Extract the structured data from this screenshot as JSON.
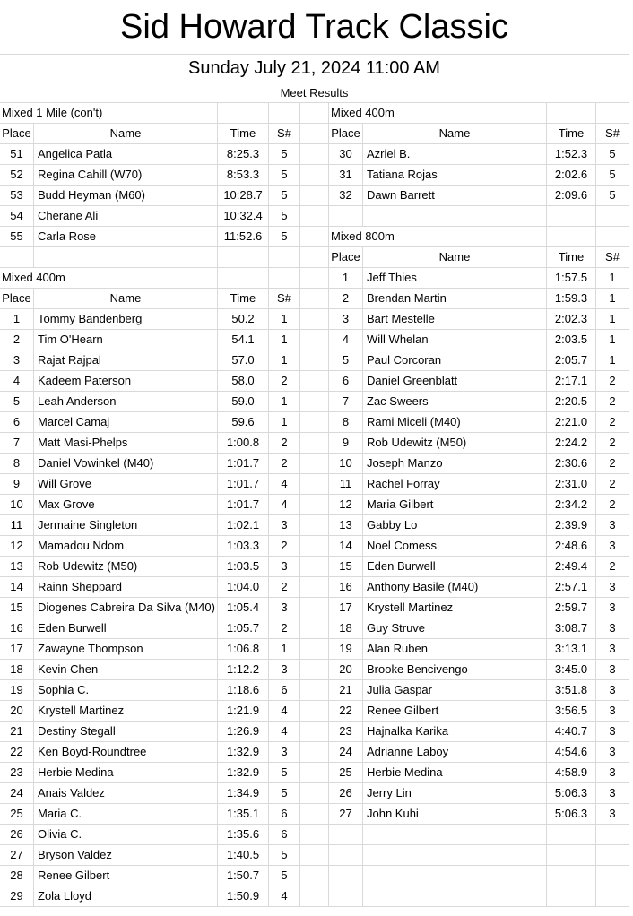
{
  "header": {
    "title": "Sid Howard Track Classic",
    "date": "Sunday July 21, 2024 11:00 AM",
    "subtitle": "Meet Results"
  },
  "columns": [
    {
      "sections": [
        {
          "title": "Mixed 1 Mile (con't)",
          "headers": [
            "Place",
            "Name",
            "Time",
            "S#"
          ],
          "rows": [
            [
              51,
              "Angelica Patla",
              "8:25.3",
              5
            ],
            [
              52,
              "Regina Cahill (W70)",
              "8:53.3",
              5
            ],
            [
              53,
              "Budd Heyman (M60)",
              "10:28.7",
              5
            ],
            [
              54,
              "Cherane Ali",
              "10:32.4",
              5
            ],
            [
              55,
              "Carla Rose",
              "11:52.6",
              5
            ]
          ]
        },
        {
          "title": "Mixed 400m",
          "headers": [
            "Place",
            "Name",
            "Time",
            "S#"
          ],
          "rows": [
            [
              1,
              "Tommy Bandenberg",
              "50.2",
              1
            ],
            [
              2,
              "Tim O'Hearn",
              "54.1",
              1
            ],
            [
              3,
              "Rajat Rajpal",
              "57.0",
              1
            ],
            [
              4,
              "Kadeem Paterson",
              "58.0",
              2
            ],
            [
              5,
              "Leah Anderson",
              "59.0",
              1
            ],
            [
              6,
              "Marcel Camaj",
              "59.6",
              1
            ],
            [
              7,
              "Matt Masi-Phelps",
              "1:00.8",
              2
            ],
            [
              8,
              "Daniel Vowinkel (M40)",
              "1:01.7",
              2
            ],
            [
              9,
              "Will Grove",
              "1:01.7",
              4
            ],
            [
              10,
              "Max Grove",
              "1:01.7",
              4
            ],
            [
              11,
              "Jermaine Singleton",
              "1:02.1",
              3
            ],
            [
              12,
              "Mamadou Ndom",
              "1:03.3",
              2
            ],
            [
              13,
              "Rob Udewitz (M50)",
              "1:03.5",
              3
            ],
            [
              14,
              "Rainn Sheppard",
              "1:04.0",
              2
            ],
            [
              15,
              "Diogenes Cabreira Da Silva (M40)",
              "1:05.4",
              3
            ],
            [
              16,
              "Eden Burwell",
              "1:05.7",
              2
            ],
            [
              17,
              "Zawayne Thompson",
              "1:06.8",
              1
            ],
            [
              18,
              "Kevin Chen",
              "1:12.2",
              3
            ],
            [
              19,
              "Sophia C.",
              "1:18.6",
              6
            ],
            [
              20,
              "Krystell Martinez",
              "1:21.9",
              4
            ],
            [
              21,
              "Destiny Stegall",
              "1:26.9",
              4
            ],
            [
              22,
              "Ken Boyd-Roundtree",
              "1:32.9",
              3
            ],
            [
              23,
              "Herbie Medina",
              "1:32.9",
              5
            ],
            [
              24,
              "Anais Valdez",
              "1:34.9",
              5
            ],
            [
              25,
              "Maria C.",
              "1:35.1",
              6
            ],
            [
              26,
              "Olivia C.",
              "1:35.6",
              6
            ],
            [
              27,
              "Bryson Valdez",
              "1:40.5",
              5
            ],
            [
              28,
              "Renee Gilbert",
              "1:50.7",
              5
            ],
            [
              29,
              "Zola Lloyd",
              "1:50.9",
              4
            ]
          ]
        }
      ]
    },
    {
      "sections": [
        {
          "title": "Mixed 400m",
          "headers": [
            "Place",
            "Name",
            "Time",
            "S#"
          ],
          "rows": [
            [
              30,
              "Azriel B.",
              "1:52.3",
              5
            ],
            [
              31,
              "Tatiana Rojas",
              "2:02.6",
              5
            ],
            [
              32,
              "Dawn Barrett",
              "2:09.6",
              5
            ]
          ]
        },
        {
          "title": "Mixed 800m",
          "headers": [
            "Place",
            "Name",
            "Time",
            "S#"
          ],
          "rows": [
            [
              1,
              "Jeff Thies",
              "1:57.5",
              1
            ],
            [
              2,
              "Brendan Martin",
              "1:59.3",
              1
            ],
            [
              3,
              "Bart Mestelle",
              "2:02.3",
              1
            ],
            [
              4,
              "Will Whelan",
              "2:03.5",
              1
            ],
            [
              5,
              "Paul Corcoran",
              "2:05.7",
              1
            ],
            [
              6,
              "Daniel Greenblatt",
              "2:17.1",
              2
            ],
            [
              7,
              "Zac Sweers",
              "2:20.5",
              2
            ],
            [
              8,
              "Rami Miceli (M40)",
              "2:21.0",
              2
            ],
            [
              9,
              "Rob Udewitz (M50)",
              "2:24.2",
              2
            ],
            [
              10,
              "Joseph Manzo",
              "2:30.6",
              2
            ],
            [
              11,
              "Rachel Forray",
              "2:31.0",
              2
            ],
            [
              12,
              "Maria Gilbert",
              "2:34.2",
              2
            ],
            [
              13,
              "Gabby Lo",
              "2:39.9",
              3
            ],
            [
              14,
              "Noel Comess",
              "2:48.6",
              3
            ],
            [
              15,
              "Eden Burwell",
              "2:49.4",
              2
            ],
            [
              16,
              "Anthony Basile (M40)",
              "2:57.1",
              3
            ],
            [
              17,
              "Krystell Martinez",
              "2:59.7",
              3
            ],
            [
              18,
              "Guy Struve",
              "3:08.7",
              3
            ],
            [
              19,
              "Alan Ruben",
              "3:13.1",
              3
            ],
            [
              20,
              "Brooke Bencivengo",
              "3:45.0",
              3
            ],
            [
              21,
              "Julia Gaspar",
              "3:51.8",
              3
            ],
            [
              22,
              "Renee Gilbert",
              "3:56.5",
              3
            ],
            [
              23,
              "Hajnalka Karika",
              "4:40.7",
              3
            ],
            [
              24,
              "Adrianne Laboy",
              "4:54.6",
              3
            ],
            [
              25,
              "Herbie Medina",
              "4:58.9",
              3
            ],
            [
              26,
              "Jerry Lin",
              "5:06.3",
              3
            ],
            [
              27,
              "John Kuhi",
              "5:06.3",
              3
            ]
          ]
        }
      ]
    }
  ]
}
